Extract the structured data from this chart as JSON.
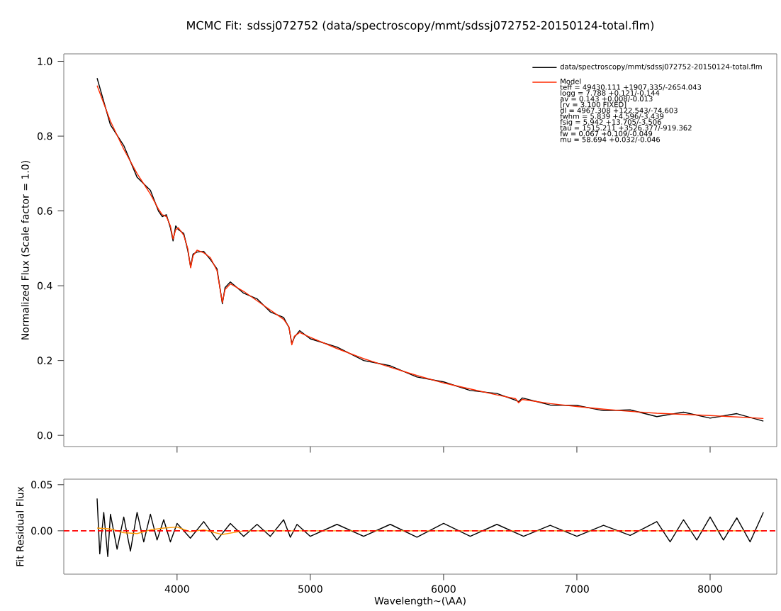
{
  "chart_data": [
    {
      "type": "line",
      "title": "MCMC Fit: sdssj072752 (data/spectroscopy/mmt/sdssj072752-20150124-total.flm)",
      "ylabel": "Normalized Flux (Scale factor = 1.0)",
      "xlim": [
        3150,
        8500
      ],
      "ylim": [
        -0.03,
        1.02
      ],
      "xticks": [
        4000,
        5000,
        6000,
        7000,
        8000
      ],
      "yticks": [
        {
          "value": 0,
          "label": "0.0"
        },
        {
          "value": 0.2,
          "label": "0.2"
        },
        {
          "value": 0.4,
          "label": "0.4"
        },
        {
          "value": 0.6,
          "label": "0.6"
        },
        {
          "value": 0.8,
          "label": "0.8"
        },
        {
          "value": 1.0,
          "label": "1.0"
        }
      ],
      "tick_labels": "y",
      "legend": "top right",
      "annotations": [
        "teff = 49430.111  +1907.335/-2654.043",
        "logg = 7.788  +0.121/-0.144",
        "av = 0.143  +0.008/-0.013",
        "[rv = 3.100  FIXED]",
        "dl = 4967.308  +122.543/-74.603",
        "fwhm = 5.839  +4.596/-3.439",
        "fsig = 5.942  +13.705/-3.506",
        "tau = 1515.211  +3526.377/-919.362",
        "fw = 0.067  +0.109/-0.049",
        "mu = 58.694  +0.032/-0.046"
      ],
      "x": [
        3400,
        3500,
        3600,
        3700,
        3800,
        3860,
        3889,
        3920,
        3950,
        3970,
        3990,
        4010,
        4050,
        4080,
        4102,
        4120,
        4150,
        4200,
        4250,
        4300,
        4340,
        4360,
        4400,
        4500,
        4600,
        4700,
        4800,
        4840,
        4861,
        4880,
        4920,
        5000,
        5200,
        5400,
        5600,
        5800,
        6000,
        6200,
        6400,
        6540,
        6563,
        6590,
        6800,
        7000,
        7200,
        7400,
        7600,
        7800,
        8000,
        8200,
        8400
      ],
      "series": [
        {
          "name": "data/spectroscopy/mmt/sdssj072752-20150124-total.flm",
          "color": "#000000",
          "values": [
            0.955,
            0.83,
            0.775,
            0.69,
            0.655,
            0.6,
            0.585,
            0.59,
            0.555,
            0.52,
            0.56,
            0.55,
            0.54,
            0.495,
            0.45,
            0.485,
            0.49,
            0.492,
            0.47,
            0.445,
            0.352,
            0.395,
            0.41,
            0.38,
            0.365,
            0.33,
            0.315,
            0.288,
            0.245,
            0.262,
            0.28,
            0.258,
            0.236,
            0.2,
            0.186,
            0.156,
            0.143,
            0.12,
            0.112,
            0.094,
            0.09,
            0.1,
            0.081,
            0.08,
            0.066,
            0.068,
            0.05,
            0.062,
            0.046,
            0.058,
            0.038
          ]
        },
        {
          "name": "Model",
          "color": "#ff2a00",
          "values": [
            0.935,
            0.84,
            0.765,
            0.7,
            0.645,
            0.605,
            0.59,
            0.585,
            0.56,
            0.525,
            0.55,
            0.555,
            0.535,
            0.5,
            0.448,
            0.48,
            0.495,
            0.488,
            0.475,
            0.44,
            0.355,
            0.39,
            0.405,
            0.385,
            0.36,
            0.335,
            0.31,
            0.29,
            0.242,
            0.265,
            0.275,
            0.262,
            0.232,
            0.205,
            0.182,
            0.16,
            0.14,
            0.124,
            0.108,
            0.098,
            0.087,
            0.096,
            0.085,
            0.077,
            0.07,
            0.064,
            0.059,
            0.056,
            0.053,
            0.049,
            0.045
          ]
        }
      ]
    },
    {
      "type": "line",
      "ylabel": "Fit Residual Flux",
      "xlabel": "Wavelength~(\\AA)",
      "xlim": [
        3150,
        8500
      ],
      "ylim": [
        -0.047,
        0.056
      ],
      "xticks": [
        4000,
        5000,
        6000,
        7000,
        8000
      ],
      "yticks": [
        {
          "value": 0,
          "label": "0.00"
        },
        0.05
      ],
      "ref_lines": [
        {
          "axis": "y",
          "value": 0,
          "color": "#ff0000",
          "line_style": "dashed"
        }
      ],
      "series": [
        {
          "color": "#000000",
          "x": [
            3400,
            3420,
            3450,
            3480,
            3500,
            3550,
            3600,
            3650,
            3700,
            3750,
            3800,
            3850,
            3900,
            3950,
            4000,
            4100,
            4200,
            4300,
            4400,
            4500,
            4600,
            4700,
            4800,
            4850,
            4900,
            5000,
            5200,
            5400,
            5600,
            5800,
            6000,
            6200,
            6400,
            6600,
            6800,
            7000,
            7200,
            7400,
            7600,
            7700,
            7800,
            7900,
            8000,
            8100,
            8200,
            8300,
            8400
          ],
          "values": [
            0.035,
            -0.025,
            0.02,
            -0.028,
            0.018,
            -0.02,
            0.015,
            -0.022,
            0.02,
            -0.012,
            0.018,
            -0.01,
            0.012,
            -0.012,
            0.008,
            -0.008,
            0.01,
            -0.01,
            0.008,
            -0.006,
            0.007,
            -0.006,
            0.012,
            -0.007,
            0.007,
            -0.006,
            0.007,
            -0.006,
            0.007,
            -0.007,
            0.008,
            -0.006,
            0.007,
            -0.006,
            0.006,
            -0.006,
            0.006,
            -0.005,
            0.01,
            -0.012,
            0.012,
            -0.01,
            0.015,
            -0.01,
            0.014,
            -0.012,
            0.02
          ]
        },
        {
          "color": "#ff9900",
          "x": [
            3400,
            3500,
            3600,
            3700,
            3800,
            3900,
            4000,
            4100,
            4200,
            4340,
            4500,
            5000,
            6000,
            7000,
            8000,
            8400
          ],
          "values": [
            0.003,
            0.002,
            -0.002,
            -0.003,
            0.001,
            0.003,
            0.004,
            -0.001,
            0.001,
            -0.004,
            0.0,
            0.0,
            0.0,
            0.0,
            0.0,
            0.0
          ]
        }
      ]
    }
  ]
}
